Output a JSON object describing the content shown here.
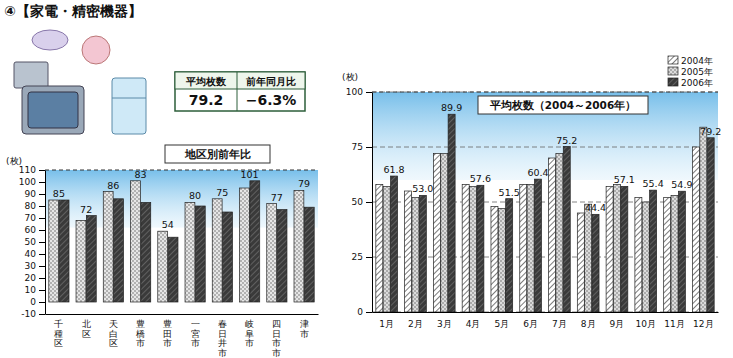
{
  "header": {
    "title": "④【家電・精密機器】"
  },
  "summary_table": {
    "headers": [
      "平均枚数",
      "前年同月比"
    ],
    "values": [
      "79.2",
      "−6.3%"
    ]
  },
  "chart_data": [
    {
      "type": "bar",
      "title": "地区別前年比",
      "y_label": "(枚)",
      "categories": [
        "千種区",
        "北区",
        "天白区",
        "豊橋市",
        "豊田市",
        "一宮市",
        "春日井市",
        "岐阜市",
        "四日市市",
        "津市"
      ],
      "series": [
        {
          "color": "#e6e6e6",
          "values": [
            85,
            68,
            92,
            101,
            59,
            83,
            86,
            95,
            82,
            93
          ]
        },
        {
          "color": "#3a3a3a",
          "values": [
            85,
            72,
            86,
            83,
            54,
            80,
            75,
            101,
            77,
            79
          ],
          "data_labels": true
        }
      ],
      "ylim": [
        -10,
        110
      ],
      "yticks": [
        -10,
        0,
        10,
        20,
        30,
        40,
        50,
        60,
        70,
        80,
        90,
        100,
        110
      ],
      "grid": false
    },
    {
      "type": "bar",
      "title": "平均枚数（2004～2006年）",
      "y_label": "(枚)",
      "categories": [
        "1月",
        "2月",
        "3月",
        "4月",
        "5月",
        "6月",
        "7月",
        "8月",
        "9月",
        "10月",
        "11月",
        "12月"
      ],
      "series": [
        {
          "name": "2004年",
          "color": "#ffffff",
          "values": [
            58,
            55,
            72,
            58,
            48,
            58,
            70,
            45,
            57,
            52,
            52,
            75
          ]
        },
        {
          "name": "2005年",
          "color": "#dcdcdc",
          "values": [
            57,
            52,
            72,
            57,
            47,
            58,
            72,
            49,
            58,
            50,
            53,
            84
          ]
        },
        {
          "name": "2006年",
          "color": "#3a3a3a",
          "values": [
            61.8,
            53.0,
            89.9,
            57.6,
            51.5,
            60.4,
            75.2,
            44.4,
            57.1,
            55.4,
            54.9,
            79.2
          ],
          "value_labels": [
            "61.8",
            "53.0",
            "89.9",
            "57.6",
            "51.5",
            "60.4",
            "75.2",
            "44.4",
            "57.1",
            "55.4",
            "54.9",
            "79.2"
          ],
          "data_labels": true
        }
      ],
      "ylim": [
        0,
        100
      ],
      "yticks": [
        0,
        25,
        50,
        75,
        100
      ],
      "grid": true,
      "legend": "top-right"
    }
  ]
}
